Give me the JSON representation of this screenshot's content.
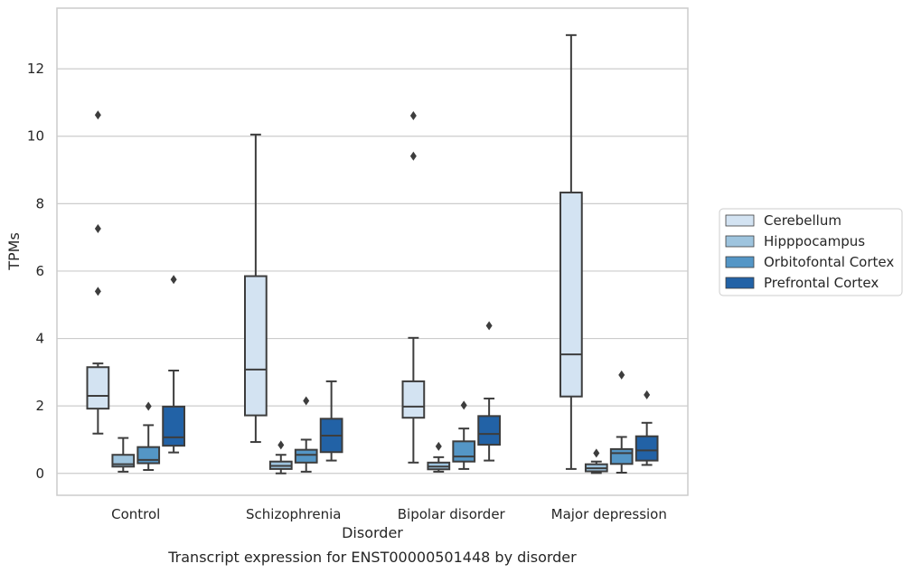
{
  "chart_data": {
    "type": "boxplot",
    "xlabel": "Disorder",
    "ylabel": "TPMs",
    "caption": "Transcript expression for ENST00000501448 by disorder",
    "ylim": [
      -0.65,
      13.8
    ],
    "yticks": [
      0,
      2,
      4,
      6,
      8,
      10,
      12
    ],
    "grid": "horizontal",
    "legend_position": "right",
    "categories": [
      "Control",
      "Schizophrenia",
      "Bipolar disorder",
      "Major depression"
    ],
    "series": [
      {
        "name": "Cerebellum",
        "color": "#d3e3f2",
        "boxes": [
          {
            "whislo": 1.18,
            "q1": 1.92,
            "med": 2.3,
            "q3": 3.15,
            "whishi": 3.26,
            "fliers": [
              5.4,
              7.26,
              10.63
            ]
          },
          {
            "whislo": 0.93,
            "q1": 1.72,
            "med": 3.08,
            "q3": 5.85,
            "whishi": 10.05,
            "fliers": []
          },
          {
            "whislo": 0.32,
            "q1": 1.65,
            "med": 1.98,
            "q3": 2.73,
            "whishi": 4.02,
            "fliers": [
              9.41,
              10.61
            ]
          },
          {
            "whislo": 0.13,
            "q1": 2.28,
            "med": 3.53,
            "q3": 8.33,
            "whishi": 13.0,
            "fliers": []
          }
        ]
      },
      {
        "name": "Hipppocampus",
        "color": "#9ec4de",
        "boxes": [
          {
            "whislo": 0.05,
            "q1": 0.2,
            "med": 0.27,
            "q3": 0.55,
            "whishi": 1.05,
            "fliers": []
          },
          {
            "whislo": 0.0,
            "q1": 0.13,
            "med": 0.22,
            "q3": 0.35,
            "whishi": 0.55,
            "fliers": [
              0.84
            ]
          },
          {
            "whislo": 0.05,
            "q1": 0.12,
            "med": 0.2,
            "q3": 0.32,
            "whishi": 0.48,
            "fliers": [
              0.8
            ]
          },
          {
            "whislo": 0.01,
            "q1": 0.06,
            "med": 0.15,
            "q3": 0.27,
            "whishi": 0.35,
            "fliers": [
              0.6
            ]
          }
        ]
      },
      {
        "name": "Orbitofontal Cortex",
        "color": "#5496c6",
        "boxes": [
          {
            "whislo": 0.1,
            "q1": 0.3,
            "med": 0.4,
            "q3": 0.78,
            "whishi": 1.43,
            "fliers": [
              1.99
            ]
          },
          {
            "whislo": 0.05,
            "q1": 0.32,
            "med": 0.55,
            "q3": 0.7,
            "whishi": 1.0,
            "fliers": [
              2.15
            ]
          },
          {
            "whislo": 0.13,
            "q1": 0.35,
            "med": 0.5,
            "q3": 0.95,
            "whishi": 1.33,
            "fliers": [
              2.02
            ]
          },
          {
            "whislo": 0.02,
            "q1": 0.28,
            "med": 0.6,
            "q3": 0.72,
            "whishi": 1.08,
            "fliers": [
              2.92
            ]
          }
        ]
      },
      {
        "name": "Prefrontal Cortex",
        "color": "#2262a6",
        "boxes": [
          {
            "whislo": 0.62,
            "q1": 0.82,
            "med": 1.07,
            "q3": 1.98,
            "whishi": 3.05,
            "fliers": [
              5.75
            ]
          },
          {
            "whislo": 0.38,
            "q1": 0.63,
            "med": 1.12,
            "q3": 1.62,
            "whishi": 2.73,
            "fliers": []
          },
          {
            "whislo": 0.38,
            "q1": 0.85,
            "med": 1.17,
            "q3": 1.7,
            "whishi": 2.22,
            "fliers": [
              4.38
            ]
          },
          {
            "whislo": 0.25,
            "q1": 0.38,
            "med": 0.68,
            "q3": 1.1,
            "whishi": 1.5,
            "fliers": [
              2.33
            ]
          }
        ]
      }
    ]
  }
}
